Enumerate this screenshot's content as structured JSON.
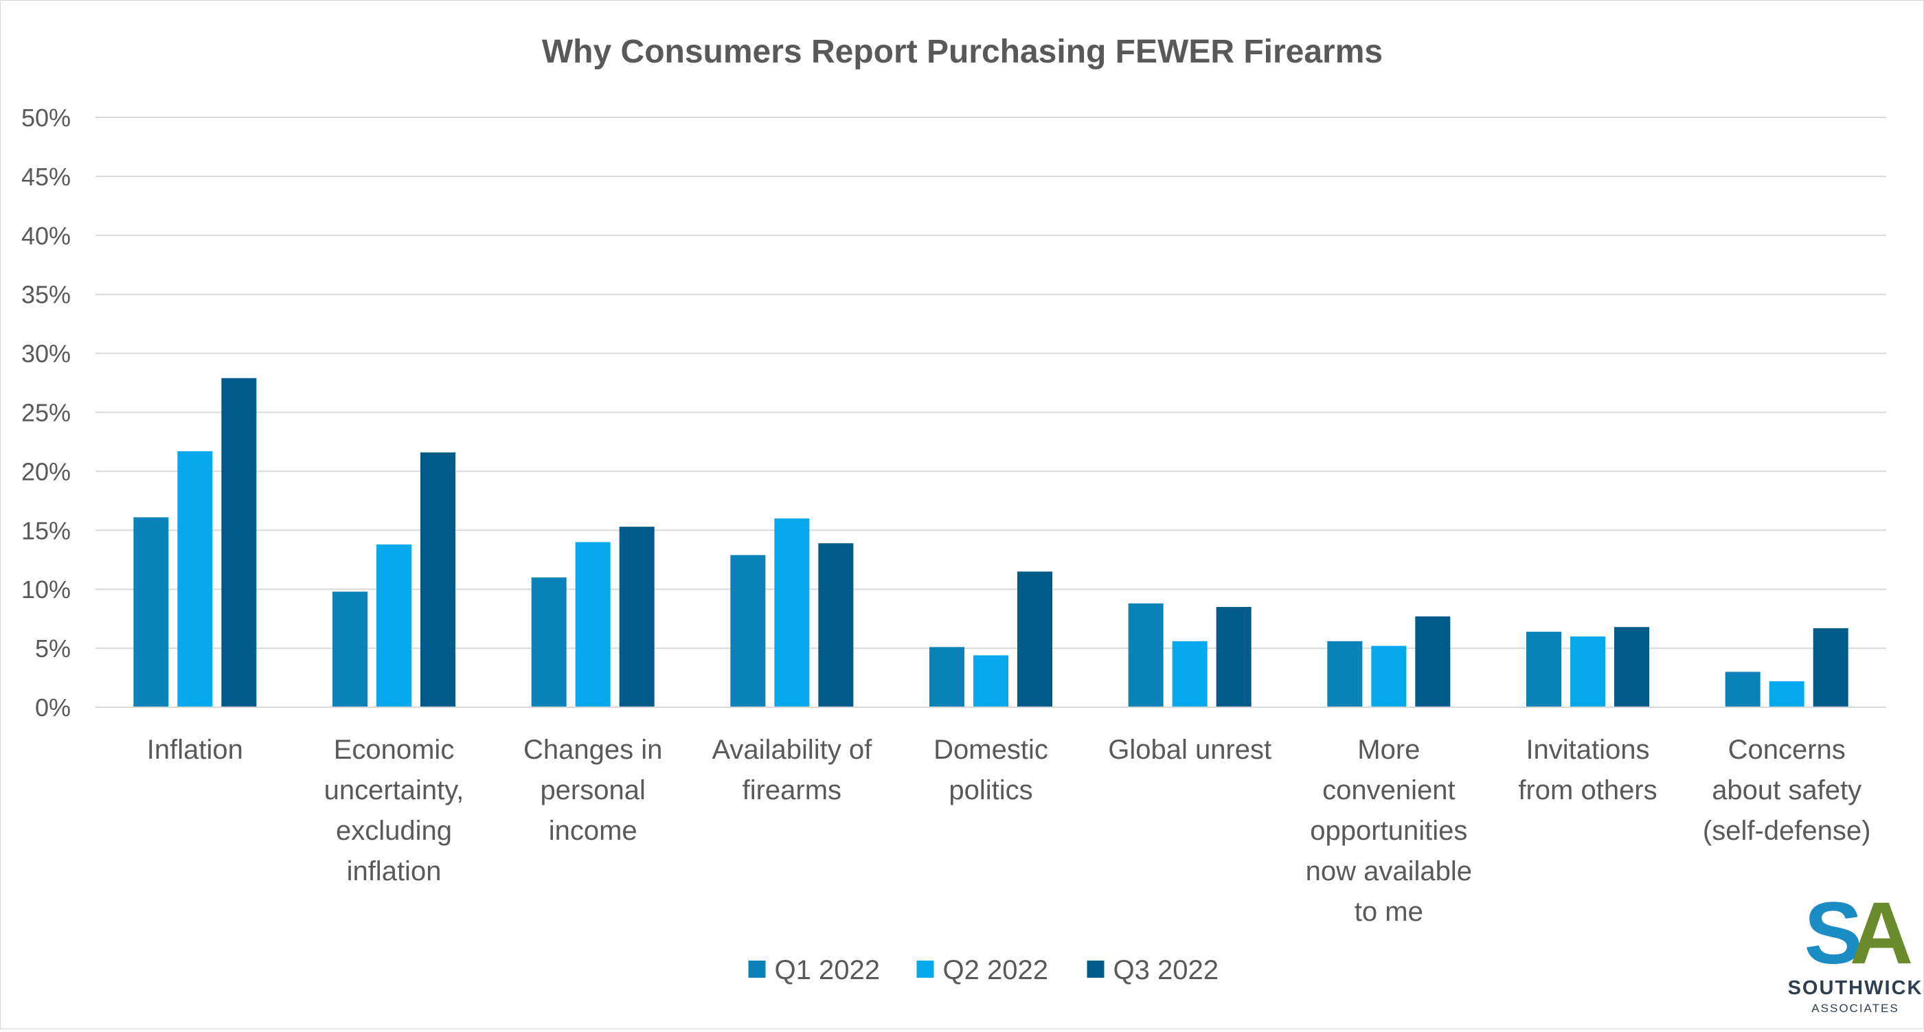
{
  "chart_data": {
    "type": "bar",
    "title": "Why Consumers Report Purchasing FEWER Firearms",
    "xlabel": "",
    "ylabel": "",
    "ylim": [
      0,
      50
    ],
    "ytick_step": 5,
    "ytick_labels": [
      "0%",
      "5%",
      "10%",
      "15%",
      "20%",
      "25%",
      "30%",
      "35%",
      "40%",
      "45%",
      "50%"
    ],
    "grid": true,
    "legend_position": "bottom",
    "categories": [
      [
        "Inflation"
      ],
      [
        "Economic",
        "uncertainty,",
        "excluding",
        "inflation"
      ],
      [
        "Changes in",
        "personal",
        "income"
      ],
      [
        "Availability of",
        "firearms"
      ],
      [
        "Domestic",
        "politics"
      ],
      [
        "Global unrest"
      ],
      [
        "More",
        "convenient",
        "opportunities",
        "now available",
        "to me"
      ],
      [
        "Invitations",
        "from others"
      ],
      [
        "Concerns",
        "about safety",
        "(self-defense)"
      ]
    ],
    "series": [
      {
        "name": "Q1 2022",
        "color": "#0b82b9",
        "values": [
          16.1,
          9.8,
          11.0,
          12.9,
          5.1,
          8.8,
          5.6,
          6.4,
          3.0
        ]
      },
      {
        "name": "Q2 2022",
        "color": "#06a9ee",
        "values": [
          21.7,
          13.8,
          14.0,
          16.0,
          4.4,
          5.6,
          5.2,
          6.0,
          2.2
        ]
      },
      {
        "name": "Q3 2022",
        "color": "#005b8a",
        "values": [
          27.9,
          21.6,
          15.3,
          13.9,
          11.5,
          8.5,
          7.7,
          6.8,
          6.7
        ]
      }
    ]
  },
  "logo": {
    "letters": "SA",
    "name": "SOUTHWICK",
    "subtitle": "ASSOCIATES",
    "colors": {
      "blue": "#1b8cc4",
      "green": "#6b8a2c",
      "text": "#2f3f4f"
    }
  },
  "colors": {
    "title": "#595959",
    "axis_text": "#595959",
    "gridline": "#d9d9d9"
  }
}
